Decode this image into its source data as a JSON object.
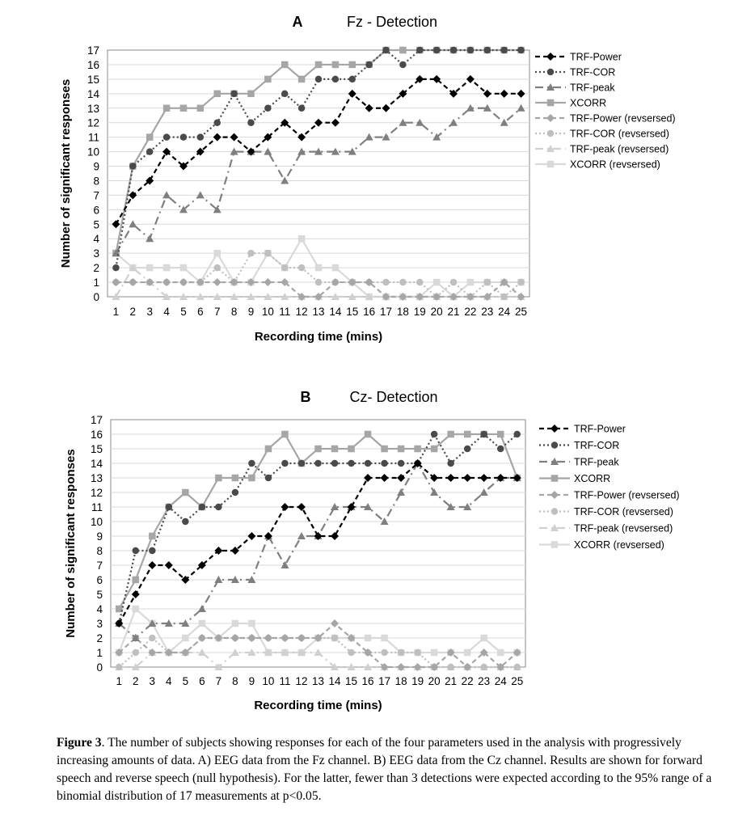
{
  "chart_data": [
    {
      "type": "line",
      "panel": "A",
      "title": "Fz - Detection",
      "xlabel": "Recording time (mins)",
      "ylabel": "Number of significant  responses",
      "x": [
        1,
        2,
        3,
        4,
        5,
        6,
        7,
        8,
        9,
        10,
        11,
        12,
        13,
        14,
        15,
        16,
        17,
        18,
        19,
        20,
        21,
        22,
        23,
        24,
        25
      ],
      "ylim": [
        0,
        17
      ],
      "yticks": [
        0,
        1,
        2,
        3,
        4,
        5,
        6,
        7,
        8,
        9,
        10,
        11,
        12,
        13,
        14,
        15,
        16,
        17
      ],
      "grid": true,
      "legend": "right",
      "series": [
        {
          "name": "TRF-Power",
          "values": [
            5,
            7,
            8,
            10,
            9,
            10,
            11,
            11,
            10,
            11,
            12,
            11,
            12,
            12,
            14,
            13,
            13,
            14,
            15,
            15,
            14,
            15,
            14,
            14,
            14
          ]
        },
        {
          "name": "TRF-COR",
          "values": [
            2,
            9,
            10,
            11,
            11,
            11,
            12,
            14,
            12,
            13,
            14,
            13,
            15,
            15,
            15,
            16,
            17,
            16,
            17,
            17,
            17,
            17,
            17,
            17,
            17
          ]
        },
        {
          "name": "TRF-peak",
          "values": [
            3,
            5,
            4,
            7,
            6,
            7,
            6,
            10,
            10,
            10,
            8,
            10,
            10,
            10,
            10,
            11,
            11,
            12,
            12,
            11,
            12,
            13,
            13,
            12,
            13
          ]
        },
        {
          "name": "XCORR",
          "values": [
            3,
            9,
            11,
            13,
            13,
            13,
            14,
            14,
            14,
            15,
            16,
            15,
            16,
            16,
            16,
            16,
            17,
            17,
            17,
            17,
            17,
            17,
            17,
            17,
            17
          ]
        },
        {
          "name": "TRF-Power (revsersed)",
          "values": [
            1,
            1,
            1,
            1,
            1,
            1,
            1,
            1,
            1,
            1,
            1,
            0,
            0,
            1,
            1,
            1,
            0,
            0,
            0,
            0,
            0,
            0,
            0,
            1,
            0
          ]
        },
        {
          "name": "TRF-COR (revsersed)",
          "values": [
            1,
            1,
            1,
            1,
            1,
            1,
            2,
            1,
            3,
            3,
            2,
            2,
            1,
            1,
            1,
            1,
            1,
            1,
            1,
            0,
            1,
            0,
            1,
            0,
            1
          ]
        },
        {
          "name": "TRF-peak (revsersed)",
          "values": [
            0,
            2,
            1,
            0,
            0,
            0,
            0,
            0,
            0,
            0,
            0,
            0,
            0,
            0,
            0,
            0,
            0,
            0,
            0,
            0,
            0,
            0,
            0,
            0,
            0
          ]
        },
        {
          "name": "XCORR (revsersed)",
          "values": [
            3,
            2,
            2,
            2,
            2,
            1,
            3,
            1,
            1,
            3,
            2,
            4,
            2,
            2,
            1,
            0,
            0,
            0,
            0,
            1,
            0,
            1,
            1,
            1,
            1
          ]
        }
      ]
    },
    {
      "type": "line",
      "panel": "B",
      "title": "Cz- Detection",
      "xlabel": "Recording time (mins)",
      "ylabel": "Number of significant  responses",
      "x": [
        1,
        2,
        3,
        4,
        5,
        6,
        7,
        8,
        9,
        10,
        11,
        12,
        13,
        14,
        15,
        16,
        17,
        18,
        19,
        20,
        21,
        22,
        23,
        24,
        25
      ],
      "ylim": [
        0,
        17
      ],
      "yticks": [
        0,
        1,
        2,
        3,
        4,
        5,
        6,
        7,
        8,
        9,
        10,
        11,
        12,
        13,
        14,
        15,
        16,
        17
      ],
      "grid": true,
      "legend": "right",
      "series": [
        {
          "name": "TRF-Power",
          "values": [
            3,
            5,
            7,
            7,
            6,
            7,
            8,
            8,
            9,
            9,
            11,
            11,
            9,
            9,
            11,
            13,
            13,
            13,
            14,
            13,
            13,
            13,
            13,
            13,
            13
          ]
        },
        {
          "name": "TRF-COR",
          "values": [
            3,
            8,
            8,
            11,
            10,
            11,
            11,
            12,
            14,
            13,
            14,
            14,
            14,
            14,
            14,
            14,
            14,
            14,
            14,
            16,
            14,
            15,
            16,
            15,
            16
          ]
        },
        {
          "name": "TRF-peak",
          "values": [
            3,
            2,
            3,
            3,
            3,
            4,
            6,
            6,
            6,
            9,
            7,
            9,
            9,
            11,
            11,
            11,
            10,
            12,
            14,
            12,
            11,
            11,
            12,
            13,
            13
          ]
        },
        {
          "name": "XCORR",
          "values": [
            4,
            6,
            9,
            11,
            12,
            11,
            13,
            13,
            13,
            15,
            16,
            14,
            15,
            15,
            15,
            16,
            15,
            15,
            15,
            15,
            16,
            16,
            16,
            16,
            13
          ]
        },
        {
          "name": "TRF-Power (revsersed)",
          "values": [
            1,
            2,
            1,
            1,
            1,
            2,
            2,
            2,
            2,
            2,
            2,
            2,
            2,
            3,
            2,
            1,
            0,
            0,
            0,
            0,
            1,
            0,
            1,
            0,
            1
          ]
        },
        {
          "name": "TRF-COR (revsersed)",
          "values": [
            0,
            1,
            2,
            1,
            1,
            2,
            2,
            2,
            2,
            2,
            2,
            2,
            2,
            2,
            1,
            1,
            1,
            1,
            1,
            0,
            0,
            0,
            0,
            0,
            0
          ]
        },
        {
          "name": "TRF-peak (revsersed)",
          "values": [
            0,
            0,
            1,
            1,
            1,
            1,
            0,
            1,
            1,
            1,
            1,
            1,
            1,
            0,
            0,
            0,
            0,
            0,
            0,
            0,
            0,
            0,
            0,
            0,
            0
          ]
        },
        {
          "name": "XCORR (revsersed)",
          "values": [
            1,
            4,
            3,
            1,
            2,
            3,
            2,
            3,
            3,
            1,
            1,
            1,
            2,
            2,
            2,
            2,
            2,
            1,
            1,
            1,
            1,
            1,
            2,
            1,
            1
          ]
        }
      ]
    }
  ],
  "series_styles": [
    {
      "color": "#000000",
      "dash": "6,4",
      "marker": "diamond"
    },
    {
      "color": "#4a4a4a",
      "dash": "2,3",
      "marker": "circle"
    },
    {
      "color": "#7f7f7f",
      "dash": "10,5,2,5",
      "marker": "triangle"
    },
    {
      "color": "#a6a6a6",
      "dash": "",
      "marker": "square"
    },
    {
      "color": "#a6a6a6",
      "dash": "6,4",
      "marker": "diamond"
    },
    {
      "color": "#bfbfbf",
      "dash": "2,3",
      "marker": "circle"
    },
    {
      "color": "#d0d0d0",
      "dash": "10,5,2,5",
      "marker": "triangle"
    },
    {
      "color": "#d9d9d9",
      "dash": "",
      "marker": "square"
    }
  ],
  "caption": {
    "label": "Figure 3",
    "text": ". The number of subjects showing responses for each of the four parameters used in the analysis with progressively increasing amounts of data. A) EEG data from the Fz channel. B) EEG data from the Cz channel. Results are shown for forward speech and reverse speech (null hypothesis). For the latter, fewer than 3 detections were expected according to the 95% range of a binomial distribution of 17 measurements at p<0.05."
  }
}
